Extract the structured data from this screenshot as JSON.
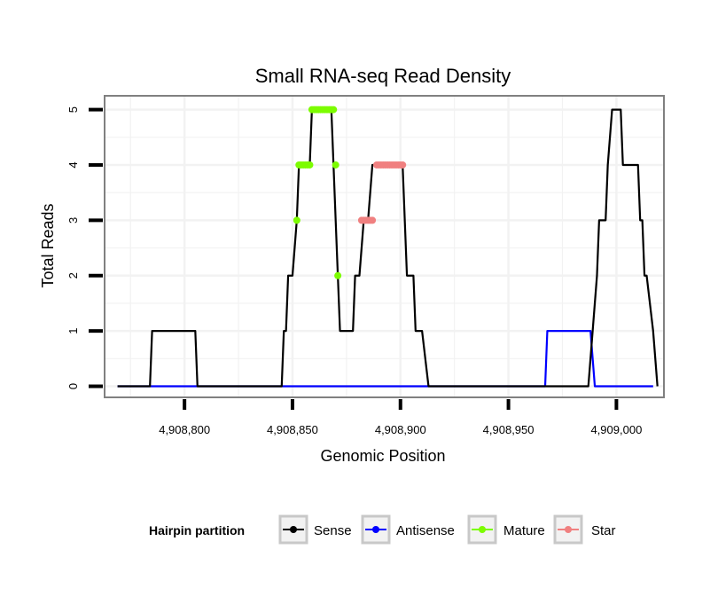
{
  "chart_data": {
    "type": "line",
    "title": "Small RNA-seq Read Density",
    "xlabel": "Genomic Position",
    "ylabel": "Total Reads",
    "xlim": [
      4908763,
      4909022
    ],
    "ylim": [
      -0.2,
      5.25
    ],
    "x_ticks": [
      4908800,
      4908850,
      4908900,
      4908950,
      4909000
    ],
    "x_tick_labels": [
      "4,908,800",
      "4,908,850",
      "4,908,900",
      "4,908,950",
      "4,909,000"
    ],
    "y_ticks": [
      0,
      1,
      2,
      3,
      4,
      5
    ],
    "y_tick_labels": [
      "0",
      "1",
      "2",
      "3",
      "4",
      "5"
    ],
    "legend": {
      "title": "Hairpin partition",
      "position": "bottom",
      "entries": [
        "Sense",
        "Antisense",
        "Mature",
        "Star"
      ]
    },
    "series": [
      {
        "name": "Sense",
        "color": "#000000",
        "kind": "line",
        "x": [
          4908769,
          4908784,
          4908785,
          4908794,
          4908805,
          4908806,
          4908845,
          4908846,
          4908847,
          4908848,
          4908849,
          4908850,
          4908852,
          4908853,
          4908854,
          4908856,
          4908858,
          4908859,
          4908860,
          4908864,
          4908866,
          4908868,
          4908869,
          4908870,
          4908871,
          4908872,
          4908873,
          4908876,
          4908877,
          4908878,
          4908879,
          4908880,
          4908881,
          4908883,
          4908884,
          4908885,
          4908887,
          4908888,
          4908890,
          4908901,
          4908902,
          4908903,
          4908905,
          4908906,
          4908907,
          4908909,
          4908910,
          4908913,
          4908939,
          4908949,
          4908951,
          4908987,
          4908989,
          4908991,
          4908992,
          4908993,
          4908995,
          4908996,
          4908998,
          4908999,
          4909002,
          4909003,
          4909004,
          4909006,
          4909010,
          4909011,
          4909012,
          4909013,
          4909014,
          4909017,
          4909019
        ],
        "y": [
          0,
          0,
          1,
          1,
          1,
          0,
          0,
          1,
          1,
          2,
          2,
          2,
          3,
          4,
          4,
          4,
          4,
          5,
          5,
          5,
          5,
          5,
          4,
          3,
          2,
          1,
          1,
          1,
          1,
          1,
          2,
          2,
          2,
          3,
          3,
          3,
          4,
          4,
          4,
          4,
          3,
          2,
          2,
          2,
          1,
          1,
          1,
          0,
          0,
          0,
          0,
          0,
          1,
          2,
          3,
          3,
          3,
          4,
          5,
          5,
          5,
          4,
          4,
          4,
          4,
          3,
          3,
          2,
          2,
          1,
          0
        ]
      },
      {
        "name": "Antisense",
        "color": "#0000ff",
        "kind": "line",
        "x": [
          4908769,
          4908967,
          4908968,
          4908987,
          4908988,
          4908990,
          4909017
        ],
        "y": [
          0,
          0,
          1,
          1,
          1,
          0,
          0
        ]
      },
      {
        "name": "Mature",
        "color": "#7cfc00",
        "kind": "points",
        "x": [
          4908852,
          4908853,
          4908854,
          4908855,
          4908856,
          4908857,
          4908858,
          4908859,
          4908860,
          4908861,
          4908862,
          4908863,
          4908864,
          4908865,
          4908866,
          4908867,
          4908868,
          4908869,
          4908870,
          4908871
        ],
        "y": [
          3,
          4,
          4,
          4,
          4,
          4,
          4,
          5,
          5,
          5,
          5,
          5,
          5,
          5,
          5,
          5,
          5,
          5,
          4,
          2
        ]
      },
      {
        "name": "Star",
        "color": "#f08080",
        "kind": "points",
        "x": [
          4908882,
          4908883,
          4908884,
          4908885,
          4908886,
          4908887,
          4908889,
          4908890,
          4908891,
          4908892,
          4908893,
          4908894,
          4908895,
          4908896,
          4908897,
          4908898,
          4908899,
          4908900,
          4908901
        ],
        "y": [
          3,
          3,
          3,
          3,
          3,
          3,
          4,
          4,
          4,
          4,
          4,
          4,
          4,
          4,
          4,
          4,
          4,
          4,
          4
        ]
      }
    ]
  }
}
